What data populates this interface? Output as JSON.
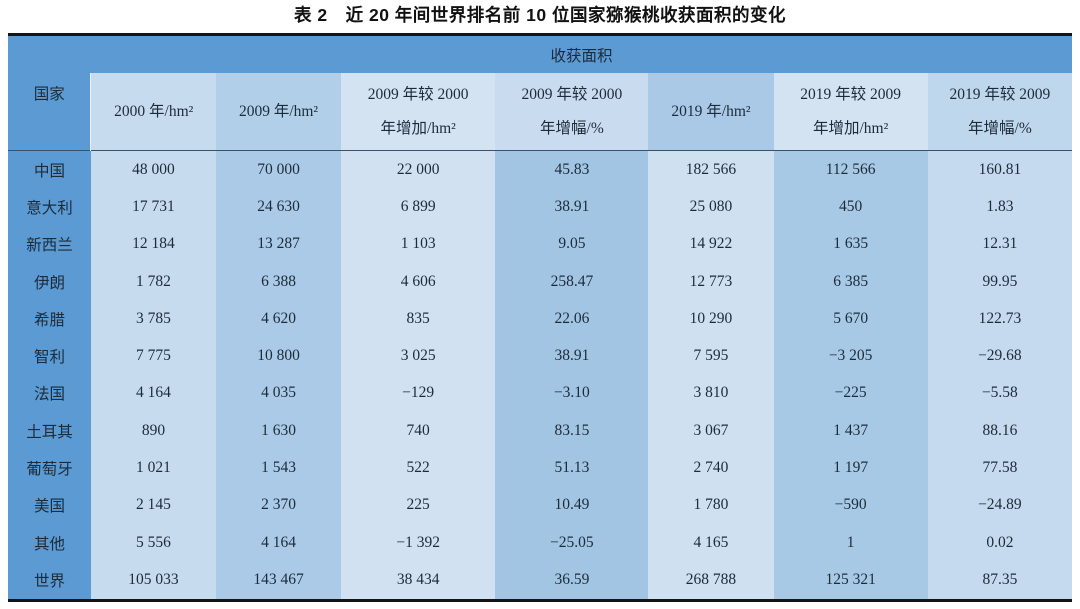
{
  "title": "表 2　近 20 年间世界排名前 10 位国家猕猴桃收获面积的变化",
  "table": {
    "corner_header": "国家",
    "group_header": "收获面积",
    "columns": [
      "2000 年/hm²",
      "2009 年/hm²",
      "2009 年较 2000\n年增加/hm²",
      "2009 年较 2000\n年增幅/%",
      "2019 年/hm²",
      "2019 年较 2009\n年增加/hm²",
      "2019 年较 2009\n年增幅/%"
    ],
    "rows": [
      {
        "country": "中国",
        "values": [
          "48 000",
          "70 000",
          "22 000",
          "45.83",
          "182 566",
          "112 566",
          "160.81"
        ]
      },
      {
        "country": "意大利",
        "values": [
          "17 731",
          "24 630",
          "6 899",
          "38.91",
          "25 080",
          "450",
          "1.83"
        ]
      },
      {
        "country": "新西兰",
        "values": [
          "12 184",
          "13 287",
          "1 103",
          "9.05",
          "14 922",
          "1 635",
          "12.31"
        ]
      },
      {
        "country": "伊朗",
        "values": [
          "1 782",
          "6 388",
          "4 606",
          "258.47",
          "12 773",
          "6 385",
          "99.95"
        ]
      },
      {
        "country": "希腊",
        "values": [
          "3 785",
          "4 620",
          "835",
          "22.06",
          "10 290",
          "5 670",
          "122.73"
        ]
      },
      {
        "country": "智利",
        "values": [
          "7 775",
          "10 800",
          "3 025",
          "38.91",
          "7 595",
          "−3 205",
          "−29.68"
        ]
      },
      {
        "country": "法国",
        "values": [
          "4 164",
          "4 035",
          "−129",
          "−3.10",
          "3 810",
          "−225",
          "−5.58"
        ]
      },
      {
        "country": "土耳其",
        "values": [
          "890",
          "1 630",
          "740",
          "83.15",
          "3 067",
          "1 437",
          "88.16"
        ]
      },
      {
        "country": "葡萄牙",
        "values": [
          "1 021",
          "1 543",
          "522",
          "51.13",
          "2 740",
          "1 197",
          "77.58"
        ]
      },
      {
        "country": "美国",
        "values": [
          "2 145",
          "2 370",
          "225",
          "10.49",
          "1 780",
          "−590",
          "−24.89"
        ]
      },
      {
        "country": "其他",
        "values": [
          "5 556",
          "4 164",
          "−1 392",
          "−25.05",
          "4 165",
          "1",
          "0.02"
        ]
      },
      {
        "country": "世界",
        "values": [
          "105 033",
          "143 467",
          "38 434",
          "36.59",
          "268 788",
          "125 321",
          "87.35"
        ]
      }
    ]
  },
  "colors": {
    "header-blue": "#5b9ad2",
    "header-sep": "#33536f",
    "rule": "#141414",
    "text": "#1c2b3a",
    "h2": "#c6dbee",
    "h3": "#b1cfe9",
    "h4": "#d3e3f2",
    "h5": "#c9dcef",
    "h6": "#a9c9e6",
    "h7": "#d3e3f2",
    "h8": "#bfd7ec",
    "d2": "#c6dbee",
    "d3": "#aacae7",
    "d4": "#d1e1f1",
    "d5": "#a2c5e4",
    "d6": "#cfe0f1",
    "d7": "#a8c9e6",
    "d8": "#c5daee"
  }
}
